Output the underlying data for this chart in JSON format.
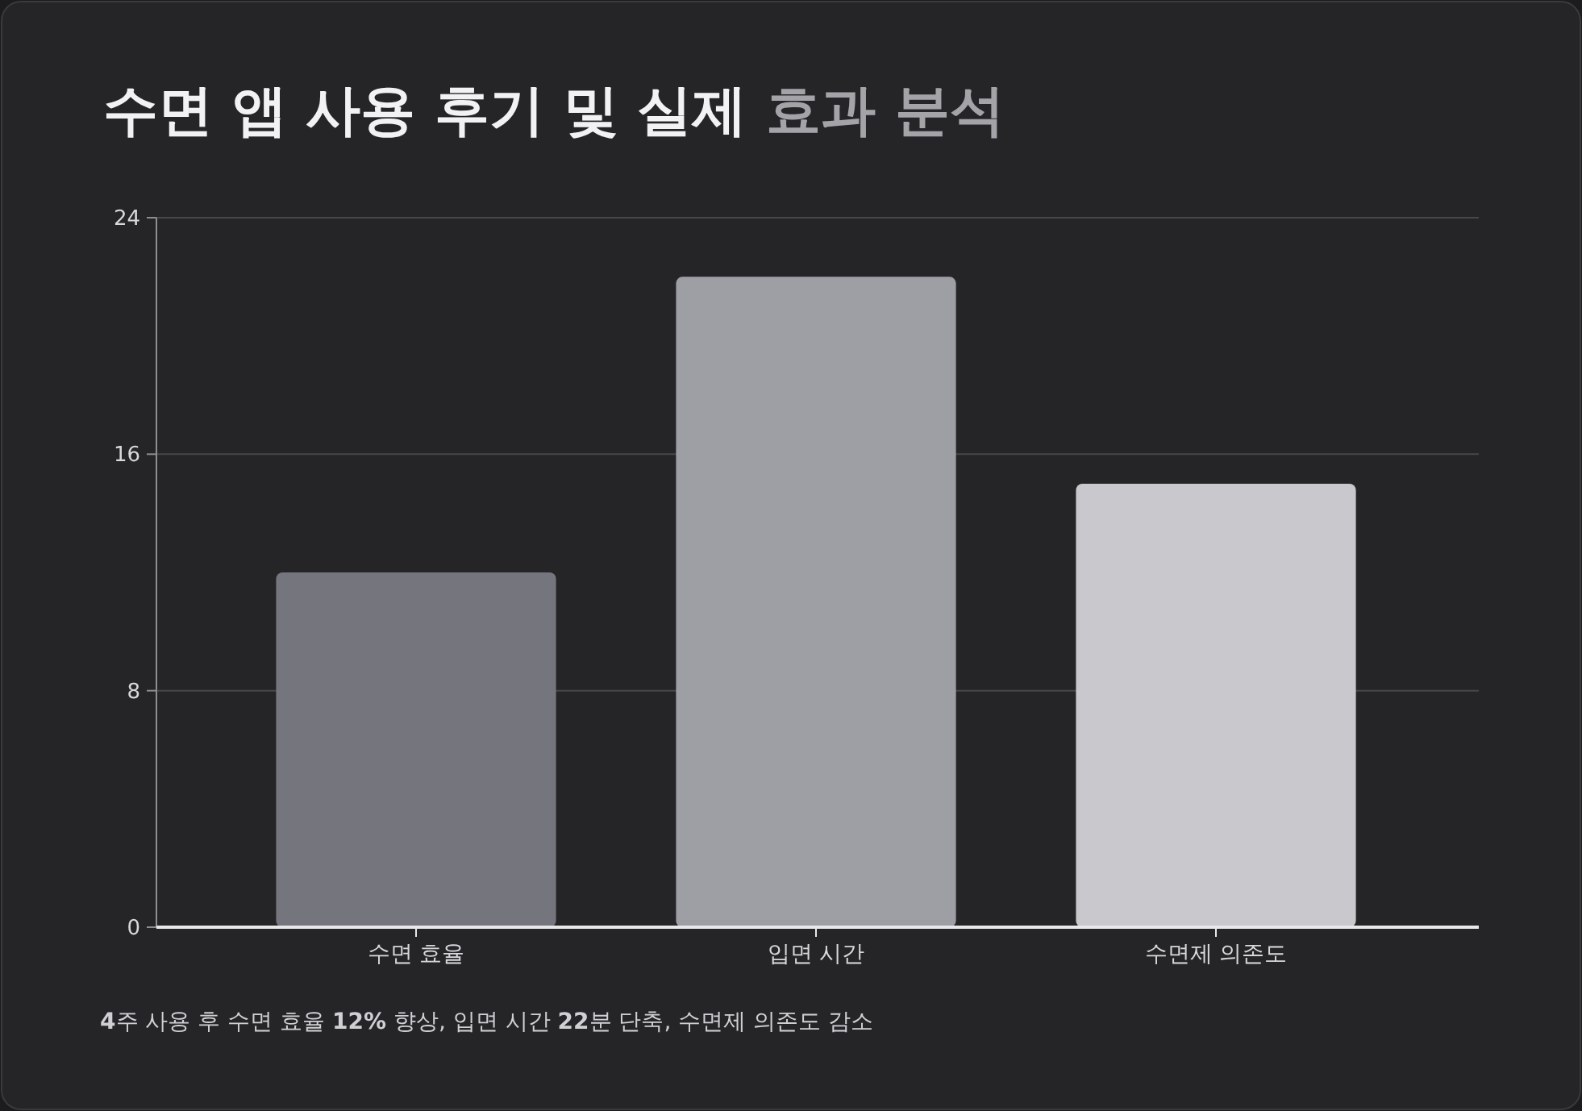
{
  "chart_data": {
    "type": "bar",
    "title": "수면 앱 사용 후기 및 실제 효과 분석",
    "categories": [
      "수면 효율",
      "입면 시간",
      "수면제 의존도"
    ],
    "values": [
      12,
      22,
      15
    ],
    "colors": [
      "#75757e",
      "#9e9fa4",
      "#c9c8cc"
    ],
    "ylim": [
      0,
      24
    ],
    "yticks": [
      0,
      8,
      16,
      24
    ],
    "grid": "y",
    "annotations": [
      "4주 사용 후 수면 효율 12% 향상, 입면 시간 22분 단축, 수면제 의존도 감소"
    ]
  }
}
